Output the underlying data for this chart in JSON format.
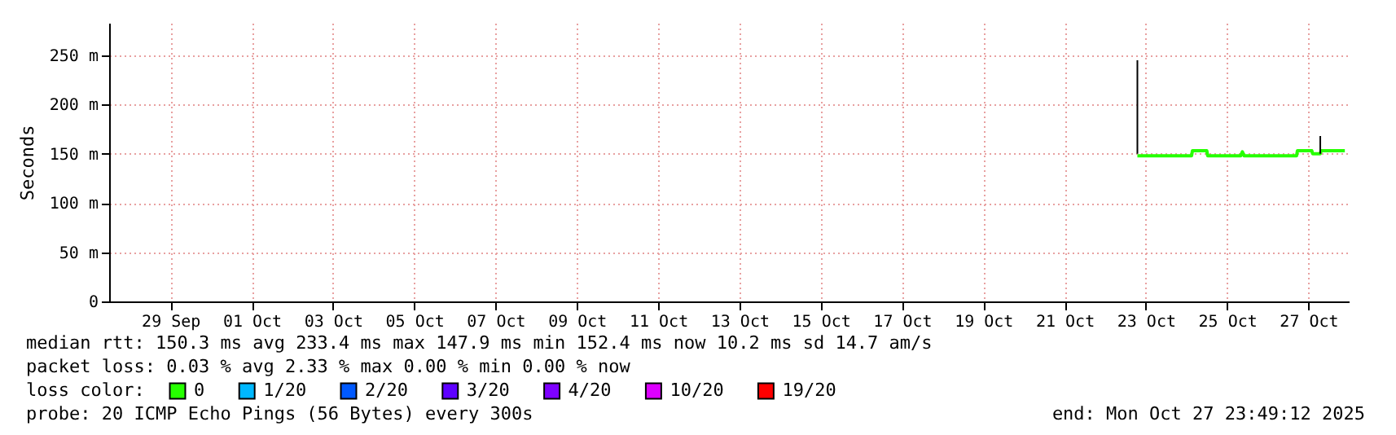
{
  "chart_data": {
    "type": "line",
    "ylabel": "Seconds",
    "legend_title": "loss color:",
    "legend": "bottom",
    "grid": true,
    "marker": "none",
    "line_style": "solid",
    "xlim": [
      "2025-09-27T11:49",
      "2025-10-27T23:49"
    ],
    "xticks": [
      {
        "value": "2025-09-29",
        "label": "29 Sep"
      },
      {
        "value": "2025-10-01",
        "label": "01 Oct"
      },
      {
        "value": "2025-10-03",
        "label": "03 Oct"
      },
      {
        "value": "2025-10-05",
        "label": "05 Oct"
      },
      {
        "value": "2025-10-07",
        "label": "07 Oct"
      },
      {
        "value": "2025-10-09",
        "label": "09 Oct"
      },
      {
        "value": "2025-10-11",
        "label": "11 Oct"
      },
      {
        "value": "2025-10-13",
        "label": "13 Oct"
      },
      {
        "value": "2025-10-15",
        "label": "15 Oct"
      },
      {
        "value": "2025-10-17",
        "label": "17 Oct"
      },
      {
        "value": "2025-10-19",
        "label": "19 Oct"
      },
      {
        "value": "2025-10-21",
        "label": "21 Oct"
      },
      {
        "value": "2025-10-23",
        "label": "23 Oct"
      },
      {
        "value": "2025-10-25",
        "label": "25 Oct"
      },
      {
        "value": "2025-10-27",
        "label": "27 Oct"
      }
    ],
    "ylim": [
      0,
      283
    ],
    "yticks": [
      0,
      {
        "value": 50,
        "label": "50 m"
      },
      {
        "value": 100,
        "label": "100 m"
      },
      {
        "value": 150,
        "label": "150 m"
      },
      {
        "value": 200,
        "label": "200 m"
      },
      {
        "value": 250,
        "label": "250 m"
      }
    ],
    "series": [
      {
        "name": "0",
        "color": "#26ff00",
        "x": [
          "2025-10-22T19:00",
          "2025-10-24T03:00",
          "2025-10-24T03:30",
          "2025-10-24T12:00",
          "2025-10-24T12:30",
          "2025-10-25T08:00",
          "2025-10-25T09:00",
          "2025-10-25T10:00",
          "2025-10-26T17:00",
          "2025-10-26T17:30",
          "2025-10-27T02:00",
          "2025-10-27T02:30",
          "2025-10-27T07:00",
          "2025-10-27T07:30",
          "2025-10-27T21:30"
        ],
        "values": [
          148,
          148,
          153,
          153,
          148,
          148,
          152,
          148,
          148,
          153,
          153,
          150,
          150,
          153,
          153
        ]
      },
      {
        "name": "1/20",
        "color": "#00b8ff"
      },
      {
        "name": "2/20",
        "color": "#0059ff"
      },
      {
        "name": "3/20",
        "color": "#5e00ff"
      },
      {
        "name": "4/20",
        "color": "#7e00ff"
      },
      {
        "name": "10/20",
        "color": "#dd00ff"
      },
      {
        "name": "19/20",
        "color": "#ff0000"
      },
      {
        "color": "#000000",
        "x": [
          "2025-10-22T19:00",
          "2025-10-22T19:00"
        ],
        "values": [
          150,
          245
        ]
      },
      {
        "color": "#000000",
        "x": [
          "2025-10-27T07:00",
          "2025-10-27T07:00"
        ],
        "values": [
          150,
          168
        ]
      }
    ],
    "annotations": [
      "median rtt: 150.3 ms avg 233.4 ms max 147.9 ms min 152.4 ms now 10.2 ms sd 14.7 am/s",
      "packet loss: 0.03 % avg 2.33 % max 0.00 % min 0.00 % now",
      "probe: 20 ICMP Echo Pings (56 Bytes) every 300s",
      "end: Mon Oct 27 23:49:12 2025"
    ]
  }
}
